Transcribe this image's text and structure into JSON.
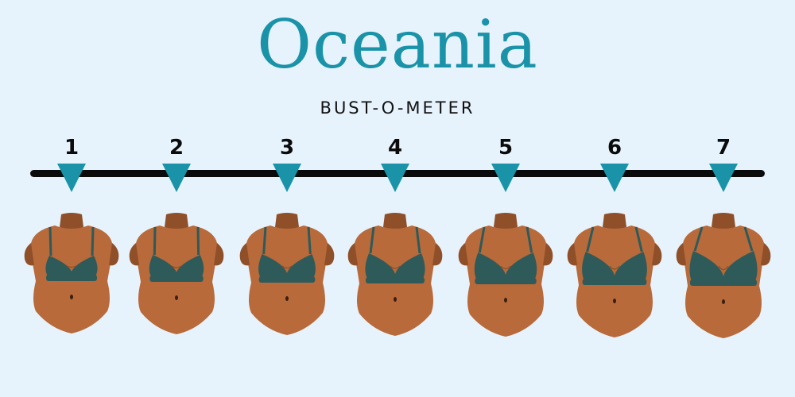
{
  "brand": {
    "name": "Oceania"
  },
  "meter": {
    "title": "BUST-O-METER",
    "levels": [
      "1",
      "2",
      "3",
      "4",
      "5",
      "6",
      "7"
    ]
  },
  "colors": {
    "background": "#e7f3fc",
    "brand": "#1a93a9",
    "line": "#0b0b0b",
    "skin": "#b86a3a",
    "lace": "#2e5a5a"
  },
  "icons": {
    "marker": "down-triangle-icon",
    "figure": "bust-illustration"
  }
}
